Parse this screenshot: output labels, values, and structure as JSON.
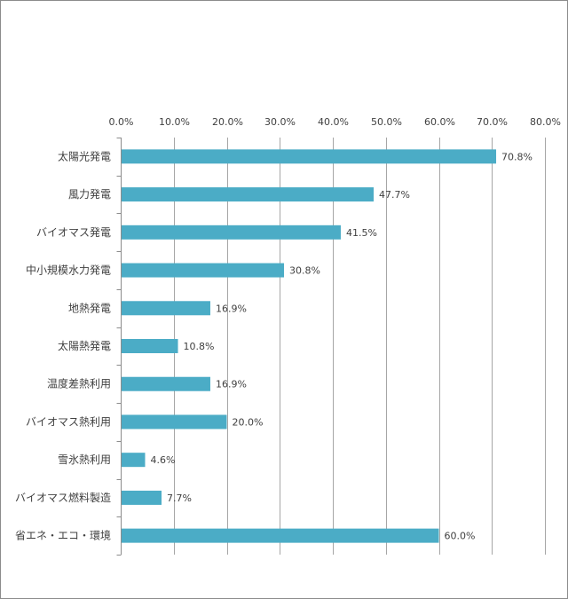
{
  "chart_data": {
    "type": "bar",
    "orientation": "horizontal",
    "categories": [
      "太陽光発電",
      "風力発電",
      "バイオマス発電",
      "中小規模水力発電",
      "地熱発電",
      "太陽熱発電",
      "温度差熱利用",
      "バイオマス熱利用",
      "雪氷熱利用",
      "バイオマス燃料製造",
      "省エネ・エコ・環境"
    ],
    "values": [
      70.8,
      47.7,
      41.5,
      30.8,
      16.9,
      10.8,
      16.9,
      20.0,
      4.6,
      7.7,
      60.0
    ],
    "value_labels": [
      "70.8%",
      "47.7%",
      "41.5%",
      "30.8%",
      "16.9%",
      "10.8%",
      "16.9%",
      "20.0%",
      "4.6%",
      "7.7%",
      "60.0%"
    ],
    "x_ticks": [
      0,
      10,
      20,
      30,
      40,
      50,
      60,
      70,
      80
    ],
    "x_tick_labels": [
      "0.0%",
      "10.0%",
      "20.0%",
      "30.0%",
      "40.0%",
      "50.0%",
      "60.0%",
      "70.0%",
      "80.0%"
    ],
    "xlim": [
      0,
      80
    ],
    "x_axis_position": "top",
    "grid": true,
    "legend": "none",
    "title": "",
    "xlabel": "",
    "ylabel": "",
    "colors": {
      "bar": "#4bacc6",
      "grid": "#a6a6a6",
      "text": "#404040"
    }
  }
}
